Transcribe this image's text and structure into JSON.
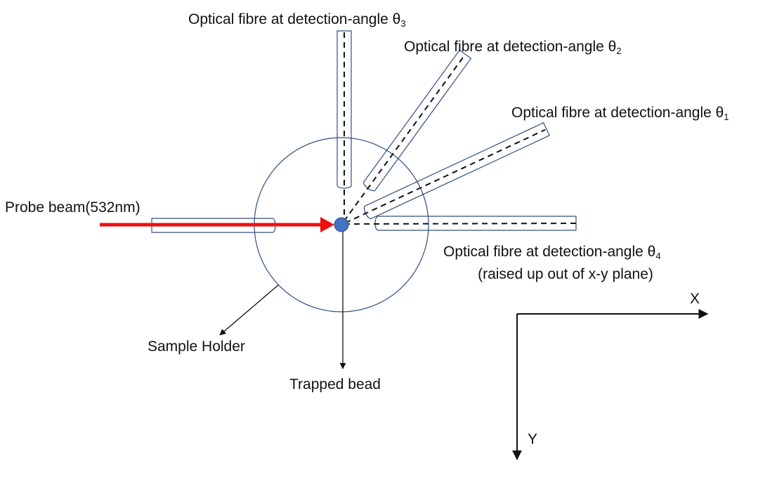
{
  "labels": {
    "fibre_theta3": {
      "text": "Optical fibre at detection-angle θ",
      "sub": "3"
    },
    "fibre_theta2": {
      "text": "Optical fibre at detection-angle θ",
      "sub": "2"
    },
    "fibre_theta1": {
      "text": "Optical fibre at detection-angle θ",
      "sub": "1"
    },
    "fibre_theta4": {
      "text": "Optical fibre at detection-angle θ",
      "sub": "4"
    },
    "fibre_theta4_note": "(raised up out of x-y plane)",
    "probe_beam": "Probe beam(532nm)",
    "sample_holder": "Sample Holder",
    "trapped_bead": "Trapped bead",
    "axis_x": "X",
    "axis_y": "Y"
  },
  "colors": {
    "outline": "#2f4f7f",
    "beam": "#ee1111",
    "bead": "#4472c4",
    "line": "#111111",
    "text": "#111111"
  }
}
